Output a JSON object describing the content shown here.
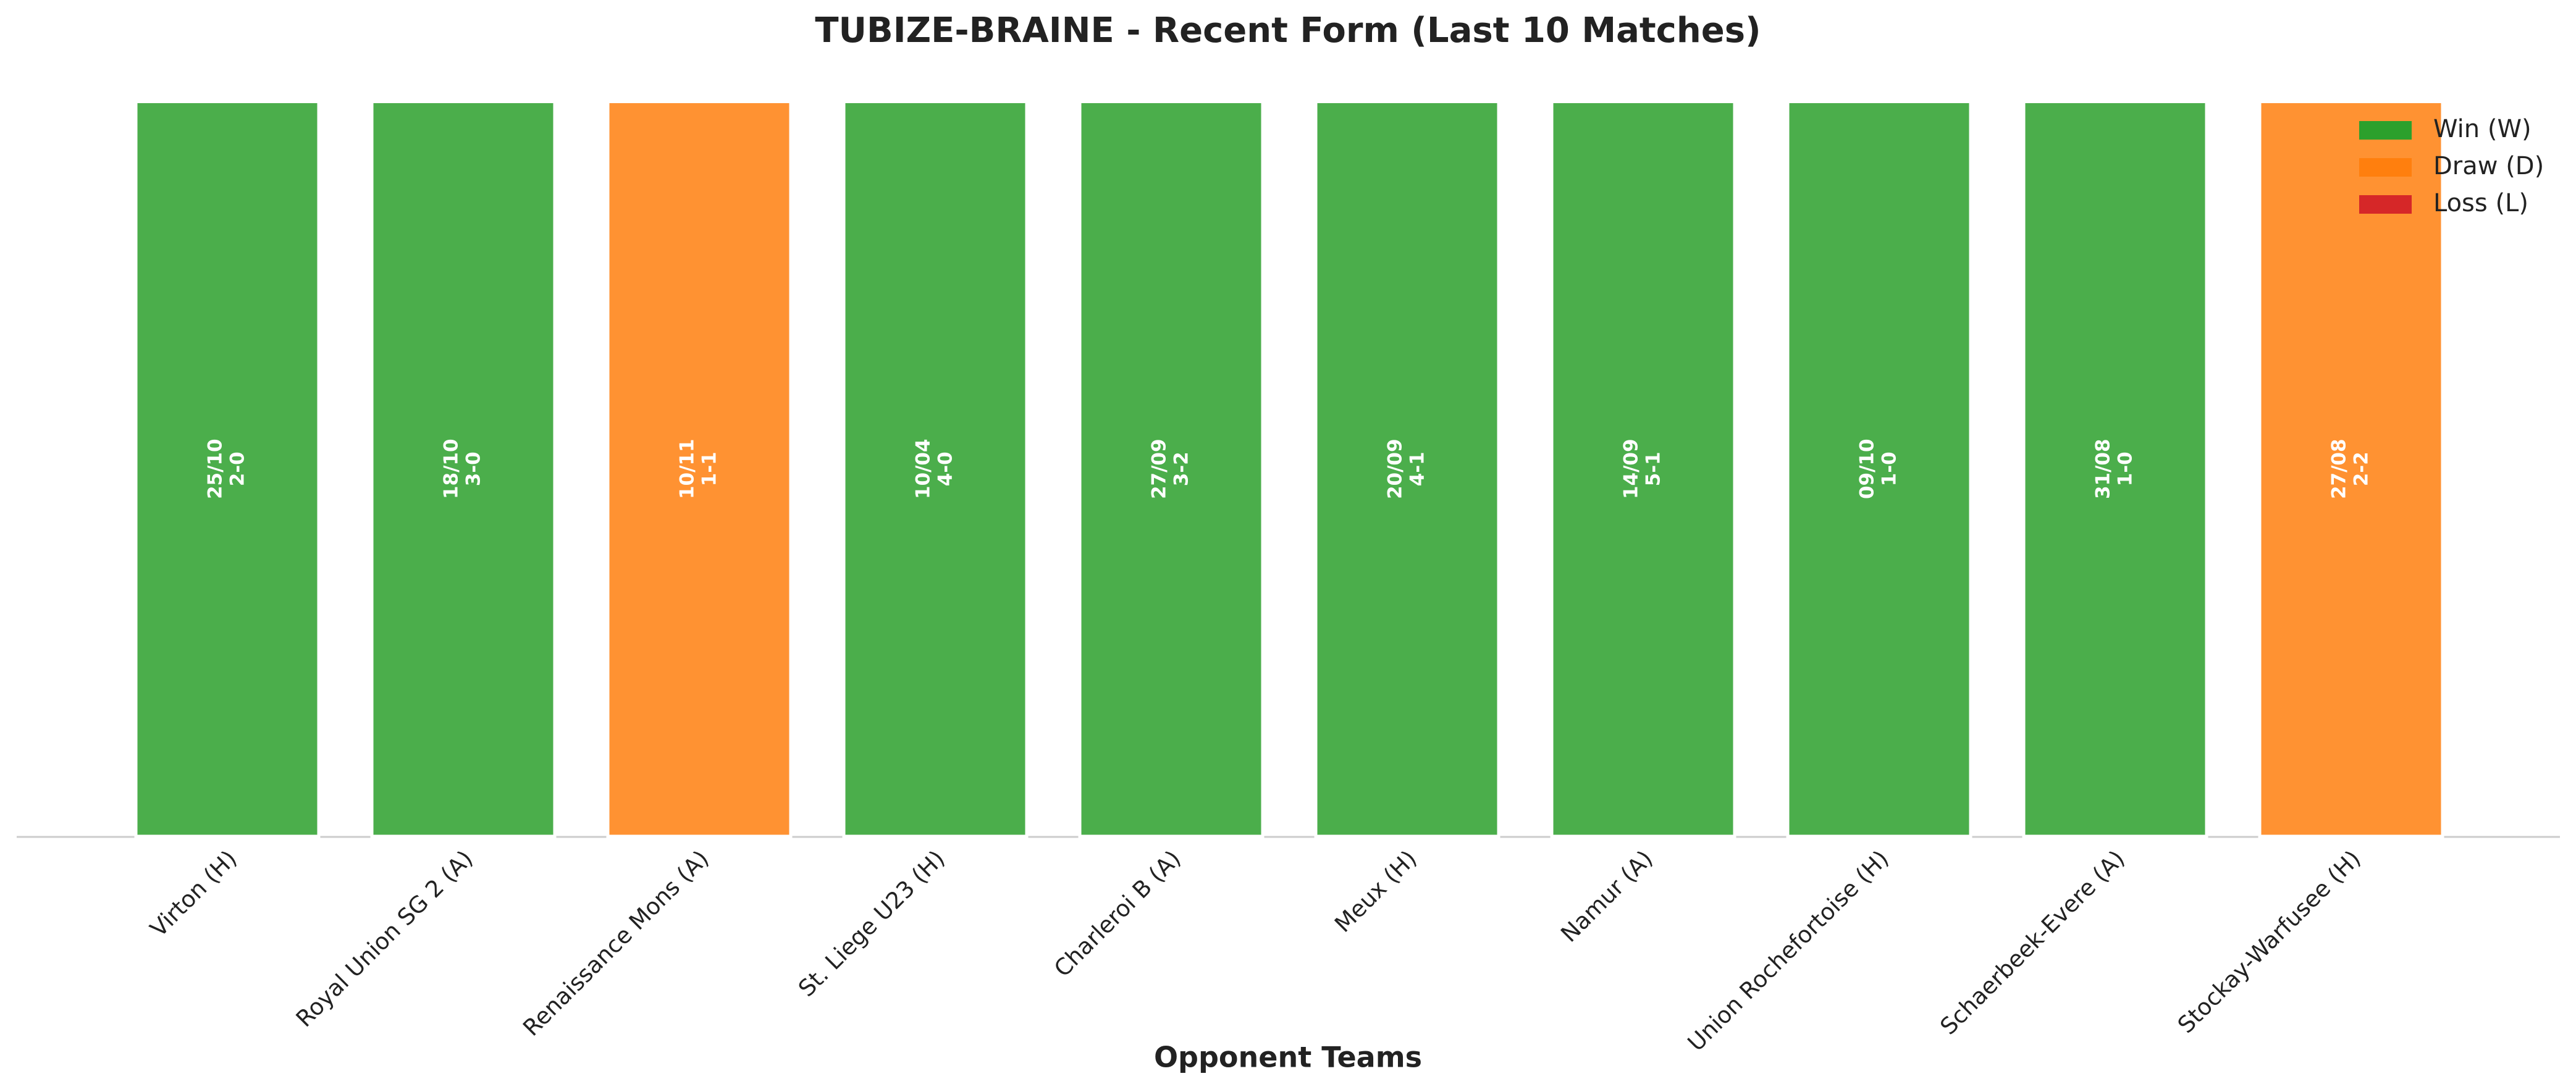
{
  "chart_data": {
    "type": "bar",
    "title": "TUBIZE-BRAINE - Recent Form (Last 10 Matches)",
    "xlabel": "Opponent Teams",
    "categories": [
      "Virton (H)",
      "Royal Union SG 2 (A)",
      "Renaissance Mons (A)",
      "St. Liege U23 (H)",
      "Charleroi B (A)",
      "Meux (H)",
      "Namur (A)",
      "Union Rochefortoise (H)",
      "Schaerbeek-Evere (A)",
      "Stockay-Warfusee (H)"
    ],
    "dates": [
      "25/10",
      "18/10",
      "10/11",
      "10/04",
      "27/09",
      "20/09",
      "14/09",
      "09/10",
      "31/08",
      "27/08"
    ],
    "scores": [
      "2-0",
      "3-0",
      "1-1",
      "4-0",
      "3-2",
      "4-1",
      "5-1",
      "1-0",
      "1-0",
      "2-2"
    ],
    "values": [
      1,
      1,
      1,
      1,
      1,
      1,
      1,
      1,
      1,
      1
    ],
    "colors": [
      "#2ca02c",
      "#2ca02c",
      "#ff7f0e",
      "#2ca02c",
      "#2ca02c",
      "#2ca02c",
      "#2ca02c",
      "#2ca02c",
      "#2ca02c",
      "#ff7f0e"
    ],
    "ylim": [
      0,
      1.05
    ],
    "legend": [
      {
        "name": "Win (W)",
        "color": "#2ca02c"
      },
      {
        "name": "Draw (D)",
        "color": "#ff7f0e"
      },
      {
        "name": "Loss (L)",
        "color": "#d62728"
      }
    ],
    "legend_position": "upper right"
  }
}
